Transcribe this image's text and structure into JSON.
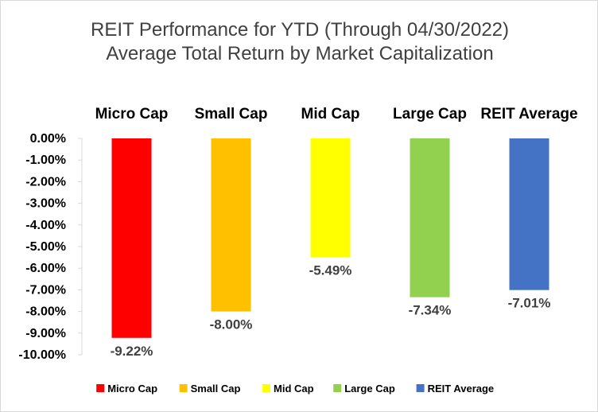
{
  "chart_data": {
    "type": "bar",
    "title": "REIT Performance for YTD (Through 04/30/2022)",
    "subtitle": "Average Total Return by Market Capitalization",
    "categories": [
      "Micro Cap",
      "Small Cap",
      "Mid Cap",
      "Large Cap",
      "REIT Average"
    ],
    "values": [
      -9.22,
      -8.0,
      -5.49,
      -7.34,
      -7.01
    ],
    "data_labels": [
      "-9.22%",
      "-8.00%",
      "-5.49%",
      "-7.34%",
      "-7.01%"
    ],
    "colors": [
      "#ff0000",
      "#ffc000",
      "#ffff00",
      "#92d050",
      "#4472c4"
    ],
    "ylim": [
      -10,
      0
    ],
    "yticks": [
      0,
      -1,
      -2,
      -3,
      -4,
      -5,
      -6,
      -7,
      -8,
      -9,
      -10
    ],
    "ytick_labels": [
      "0.00%",
      "-1.00%",
      "-2.00%",
      "-3.00%",
      "-4.00%",
      "-5.00%",
      "-6.00%",
      "-7.00%",
      "-8.00%",
      "-9.00%",
      "-10.00%"
    ],
    "category_labels_position": "top",
    "grid": false,
    "legend": {
      "position": "bottom",
      "entries": [
        "Micro Cap",
        "Small Cap",
        "Mid Cap",
        "Large Cap",
        "REIT Average"
      ]
    },
    "xlabel": "",
    "ylabel": ""
  }
}
